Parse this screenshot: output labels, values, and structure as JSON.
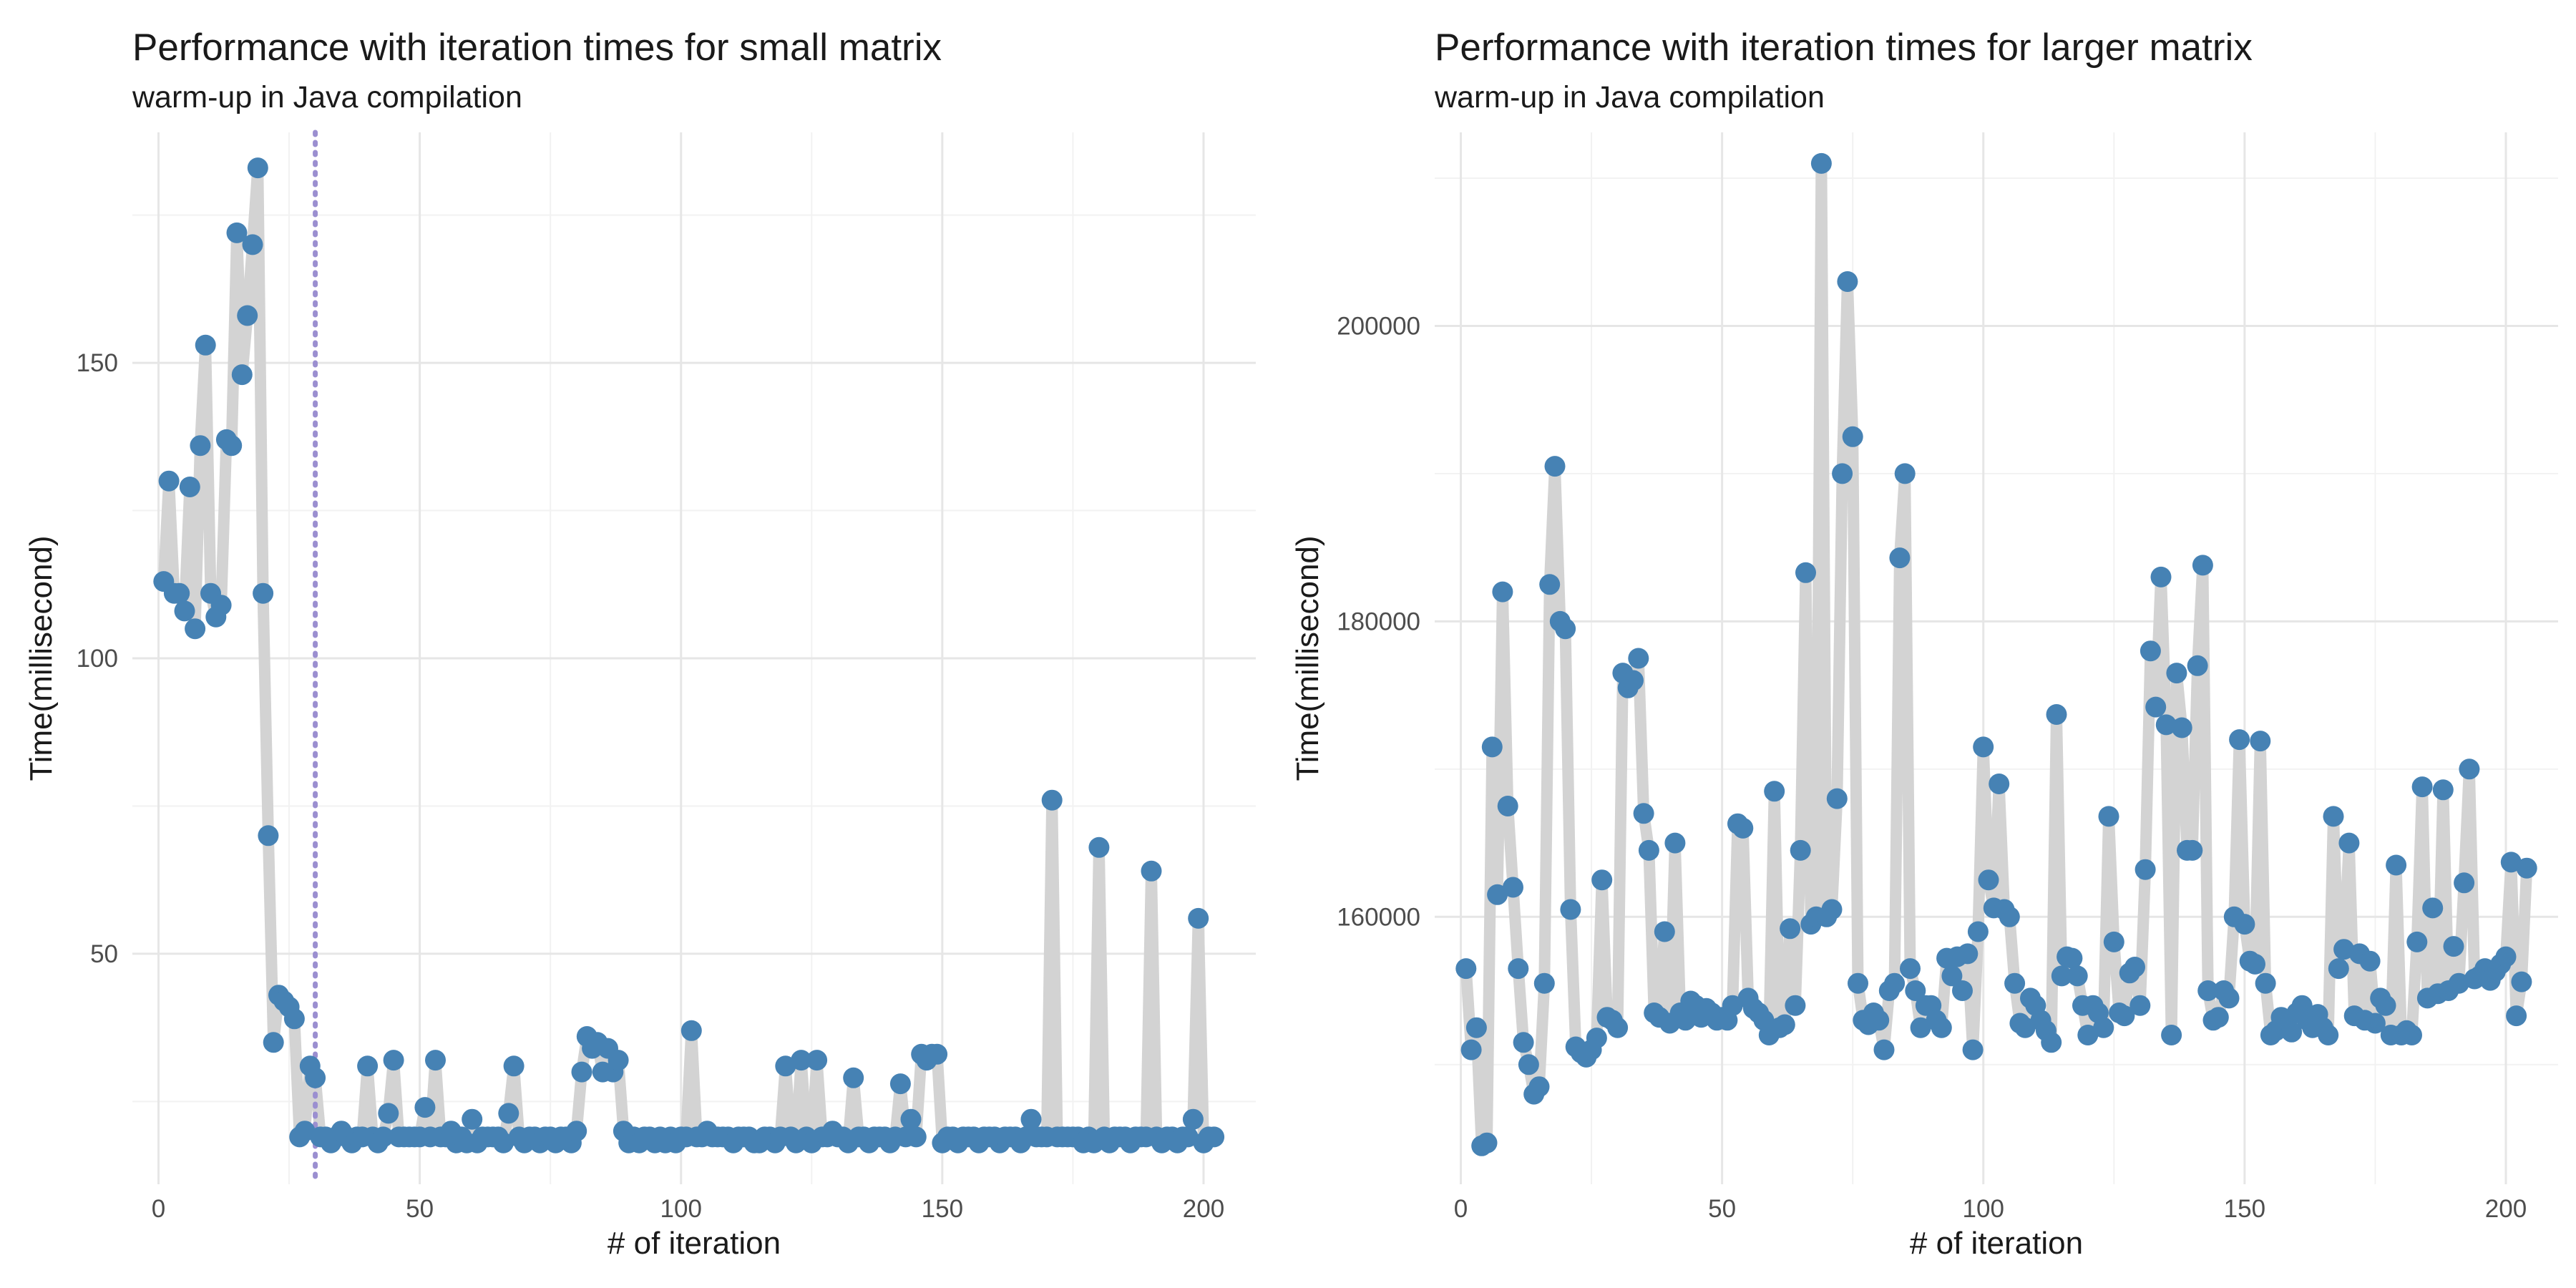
{
  "chart_data": [
    {
      "type": "line",
      "title": "Performance with iteration times for small matrix",
      "subtitle": "warm-up in Java compilation",
      "xlabel": "# of iteration",
      "ylabel": "Time(millisecond)",
      "xlim": [
        -5,
        210
      ],
      "ylim": [
        11,
        189
      ],
      "x_ticks": [
        0,
        50,
        100,
        150,
        200
      ],
      "y_ticks": [
        50,
        100,
        150
      ],
      "grid": true,
      "vline": 30,
      "line_color": "#d3d3d3",
      "point_color": "#4682b4",
      "vline_color": "#9b8fd0",
      "y": [
        113,
        130,
        111,
        111,
        108,
        129,
        105,
        136,
        153,
        111,
        107,
        109,
        137,
        136,
        172,
        148,
        158,
        170,
        183,
        111,
        70,
        35,
        43,
        42,
        41,
        39,
        19,
        20,
        31,
        29,
        19,
        19,
        18,
        19,
        20,
        19,
        18,
        19,
        19,
        31,
        19,
        18,
        19,
        23,
        32,
        19,
        19,
        19,
        19,
        19,
        24,
        19,
        32,
        19,
        19,
        20,
        18,
        19,
        18,
        22,
        18,
        19,
        19,
        19,
        19,
        18,
        23,
        31,
        19,
        18,
        19,
        19,
        18,
        19,
        19,
        18,
        19,
        19,
        18,
        20,
        30,
        36,
        34,
        35,
        30,
        34,
        30,
        32,
        20,
        18,
        19,
        18,
        19,
        19,
        18,
        19,
        18,
        19,
        18,
        19,
        19,
        37,
        19,
        19,
        20,
        19,
        19,
        19,
        19,
        18,
        19,
        19,
        19,
        18,
        18,
        19,
        19,
        18,
        19,
        31,
        19,
        18,
        32,
        19,
        18,
        32,
        19,
        19,
        20,
        19,
        19,
        18,
        29,
        19,
        19,
        18,
        19,
        19,
        19,
        18,
        19,
        28,
        19,
        22,
        19,
        33,
        32,
        33,
        33,
        18,
        19,
        19,
        18,
        19,
        19,
        19,
        18,
        19,
        19,
        19,
        18,
        19,
        19,
        19,
        18,
        19,
        22,
        19,
        19,
        19,
        76,
        19,
        19,
        19,
        19,
        19,
        18,
        19,
        18,
        68,
        19,
        18,
        19,
        19,
        19,
        18,
        19,
        19,
        19,
        64,
        19,
        18,
        19,
        19,
        18,
        19,
        19,
        22,
        56,
        18,
        19,
        19
      ]
    },
    {
      "type": "line",
      "title": "Performance with iteration times for larger matrix",
      "subtitle": "warm-up in Java compilation",
      "xlabel": "# of iteration",
      "ylabel": "Time(millisecond)",
      "xlim": [
        -5,
        210
      ],
      "ylim": [
        141900,
        213100
      ],
      "x_ticks": [
        0,
        50,
        100,
        150,
        200
      ],
      "y_ticks": [
        160000,
        180000,
        200000
      ],
      "grid": true,
      "line_color": "#d3d3d3",
      "point_color": "#4682b4",
      "y": [
        156500,
        151000,
        152500,
        144500,
        144700,
        171500,
        161500,
        182000,
        167500,
        162000,
        156500,
        151500,
        150000,
        148000,
        148500,
        155500,
        182500,
        190500,
        180000,
        179500,
        160500,
        151200,
        150800,
        150500,
        151000,
        151800,
        162500,
        153200,
        153000,
        152500,
        176500,
        175500,
        176000,
        177500,
        167000,
        164500,
        153500,
        153200,
        159000,
        152800,
        165000,
        153500,
        153000,
        154300,
        154000,
        153200,
        153800,
        153500,
        153000,
        153200,
        153000,
        154000,
        166300,
        166000,
        154500,
        153800,
        153500,
        153000,
        152000,
        168500,
        152500,
        152700,
        159200,
        154000,
        164500,
        183300,
        159500,
        160000,
        211000,
        160000,
        160500,
        168000,
        190000,
        203000,
        192500,
        155500,
        153000,
        152700,
        153500,
        153000,
        151000,
        155000,
        155500,
        184300,
        190000,
        156500,
        155000,
        152500,
        154000,
        154000,
        153000,
        152500,
        157200,
        156000,
        157300,
        155000,
        157500,
        151000,
        159000,
        171500,
        162500,
        160600,
        169000,
        160500,
        160000,
        155500,
        152800,
        152500,
        154500,
        154000,
        153000,
        152300,
        151500,
        173700,
        156000,
        157300,
        157200,
        156000,
        154000,
        152000,
        154000,
        153500,
        152500,
        166800,
        158300,
        153500,
        153300,
        156200,
        156600,
        154000,
        163200,
        178000,
        174200,
        183000,
        173000,
        152000,
        176500,
        172800,
        164500,
        164500,
        177000,
        183800,
        155000,
        153000,
        153200,
        155000,
        154500,
        160000,
        172000,
        159500,
        157000,
        156800,
        171900,
        155500,
        152000,
        152300,
        153200,
        153000,
        152200,
        153500,
        154000,
        153000,
        152500,
        153400,
        152500,
        152000,
        166800,
        156500,
        157800,
        165000,
        153300,
        157500,
        153000,
        157000,
        152800,
        154500,
        154000,
        152000,
        163500,
        152000,
        152300,
        152000,
        158300,
        168800,
        154500,
        160600,
        154800,
        168600,
        155000,
        158000,
        155500,
        162300,
        170000,
        155800,
        156000,
        156500,
        155700,
        156300,
        156800,
        157300,
        163700,
        153300,
        155600,
        163300
      ]
    }
  ]
}
